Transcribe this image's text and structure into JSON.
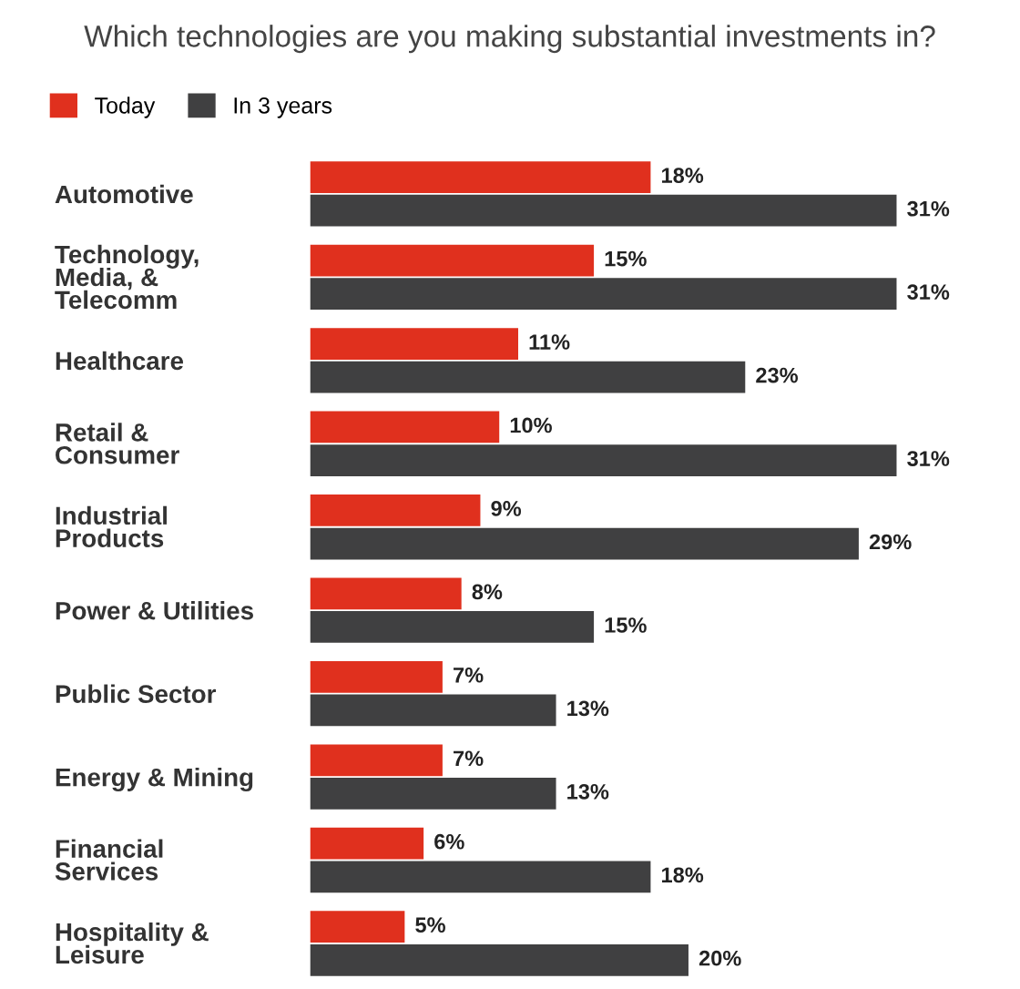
{
  "chart_data": {
    "type": "bar",
    "orientation": "horizontal",
    "title": "Which technologies are you making substantial investments in?",
    "categories": [
      "Automotive",
      "Technology,\nMedia, &\nTelecomm",
      "Healthcare",
      "Retail &\nConsumer",
      "Industrial\nProducts",
      "Power & Utilities",
      "Public Sector",
      "Energy & Mining",
      "Financial\nServices",
      "Hospitality &\nLeisure"
    ],
    "series": [
      {
        "name": "Today",
        "color": "#e0301e",
        "values": [
          18,
          15,
          11,
          10,
          9,
          8,
          7,
          7,
          6,
          5
        ],
        "value_labels": [
          "18%",
          "15%",
          "11%",
          "10%",
          "9%",
          "8%",
          "7%",
          "7%",
          "6%",
          "5%"
        ]
      },
      {
        "name": "In 3 years",
        "color": "#404041",
        "values": [
          31,
          31,
          23,
          31,
          29,
          15,
          13,
          13,
          18,
          20
        ],
        "value_labels": [
          "31%",
          "31%",
          "23%",
          "31%",
          "29%",
          "15%",
          "13%",
          "13%",
          "18%",
          "20%"
        ]
      }
    ],
    "legend": "top left",
    "grid": false
  }
}
